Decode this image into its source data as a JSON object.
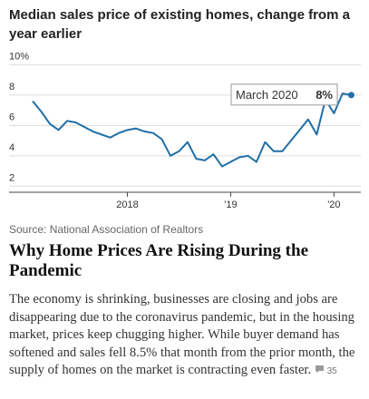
{
  "chart_data": {
    "type": "line",
    "title": "Median sales price of existing homes, change from a year earlier",
    "x": [
      2017.083,
      2017.167,
      2017.25,
      2017.333,
      2017.417,
      2017.5,
      2017.583,
      2017.667,
      2017.75,
      2017.833,
      2017.917,
      2018.0,
      2018.083,
      2018.167,
      2018.25,
      2018.333,
      2018.417,
      2018.5,
      2018.583,
      2018.667,
      2018.75,
      2018.833,
      2018.917,
      2019.0,
      2019.083,
      2019.167,
      2019.25,
      2019.333,
      2019.417,
      2019.5,
      2019.583,
      2019.667,
      2019.75,
      2019.833,
      2019.917,
      2020.0,
      2020.083,
      2020.167
    ],
    "series": [
      {
        "color": "#1f6fa8",
        "values": [
          7.6,
          6.9,
          6.1,
          5.7,
          6.3,
          6.2,
          5.9,
          5.6,
          5.4,
          5.2,
          5.5,
          5.7,
          5.8,
          5.6,
          5.5,
          5.1,
          4.0,
          4.3,
          4.9,
          3.8,
          3.7,
          4.1,
          3.3,
          3.6,
          3.9,
          4.0,
          3.6,
          4.9,
          4.3,
          4.3,
          5.0,
          5.7,
          6.4,
          5.4,
          7.7,
          6.8,
          8.1,
          8.0
        ]
      }
    ],
    "xlim": [
      2017.03,
      2020.26
    ],
    "xticks": [
      2018,
      {
        "value": 2019,
        "label": "'19"
      },
      {
        "value": 2020,
        "label": "'20"
      }
    ],
    "ylim": [
      1.6,
      10.2
    ],
    "yticks": [
      {
        "value": 10,
        "label": "10%"
      },
      8,
      6,
      4,
      2
    ],
    "grid": true,
    "annotation": {
      "label": "March 2020",
      "value": 8,
      "value_label": "8%"
    }
  },
  "source": "Source: National Association of Realtors",
  "headline": "Why Home Prices Are Rising During the Pandemic",
  "summary": "The economy is shrinking, businesses are closing and jobs are disappearing due to the coronavirus pandemic, but in the housing market, prices keep chugging higher. While buyer demand has softened and sales fell 8.5% that month from the prior month, the supply of homes on the market is contracting even faster.",
  "comments": 35
}
